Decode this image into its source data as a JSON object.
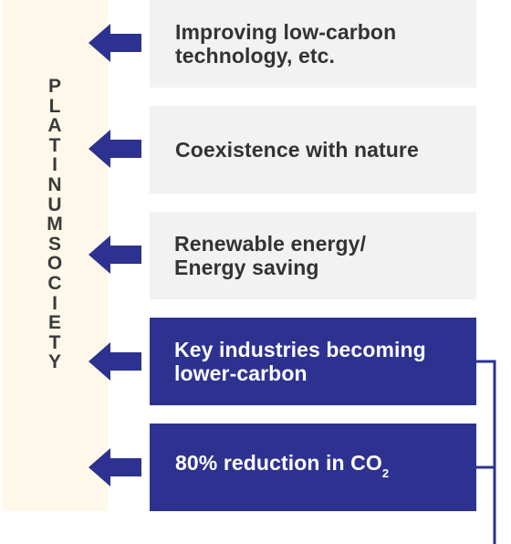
{
  "vertical_label": [
    "P",
    "L",
    "A",
    "T",
    "I",
    "N",
    "U",
    "M",
    "S",
    "O",
    "C",
    "I",
    "E",
    "T",
    "Y"
  ],
  "items": [
    {
      "line1": "Improving low-carbon",
      "line2": "technology, etc."
    },
    {
      "line1": "Coexistence with nature",
      "line2": ""
    },
    {
      "line1": "Renewable energy/",
      "line2": "Energy saving"
    },
    {
      "line1": "Key industries becoming",
      "line2": "lower-carbon"
    },
    {
      "main": "80% reduction in CO",
      "sub": "2"
    }
  ],
  "colors": {
    "navy": "#2d3290",
    "light_box": "#f2f2f2",
    "band": "#fdf8ea",
    "text_dark": "#333333"
  },
  "icons": [
    "arrow-left-icon",
    "bracket-connector"
  ]
}
